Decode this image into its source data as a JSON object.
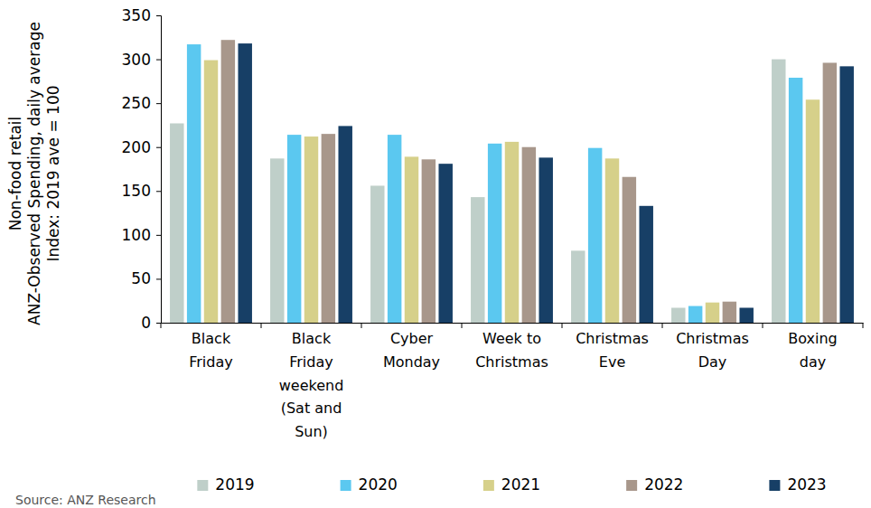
{
  "chart_data": {
    "type": "bar",
    "y_label": [
      "Non-food retail",
      "ANZ-Observed Spending, daily average",
      "Index: 2019 ave = 100"
    ],
    "categories": [
      "Black Friday",
      "Black Friday weekend (Sat and Sun)",
      "Cyber Monday",
      "Week to Christmas",
      "Christmas Eve",
      "Christmas Day",
      "Boxing day"
    ],
    "series": [
      {
        "name": "2019",
        "color": "#bfcfc9",
        "values": [
          227,
          187,
          156,
          143,
          82,
          17,
          300
        ]
      },
      {
        "name": "2020",
        "color": "#5bc8f0",
        "values": [
          317,
          214,
          214,
          204,
          199,
          19,
          279
        ]
      },
      {
        "name": "2021",
        "color": "#d6d08a",
        "values": [
          299,
          212,
          189,
          206,
          187,
          23,
          254
        ]
      },
      {
        "name": "2022",
        "color": "#a8978b",
        "values": [
          322,
          215,
          186,
          200,
          166,
          24,
          296
        ]
      },
      {
        "name": "2023",
        "color": "#173f66",
        "values": [
          318,
          224,
          181,
          188,
          133,
          17,
          292
        ]
      }
    ],
    "ylim": [
      0,
      350
    ],
    "yticks": [
      0,
      50,
      100,
      150,
      200,
      250,
      300,
      350
    ],
    "grid": false,
    "legend": "bottom",
    "source": "Source: ANZ Research"
  }
}
